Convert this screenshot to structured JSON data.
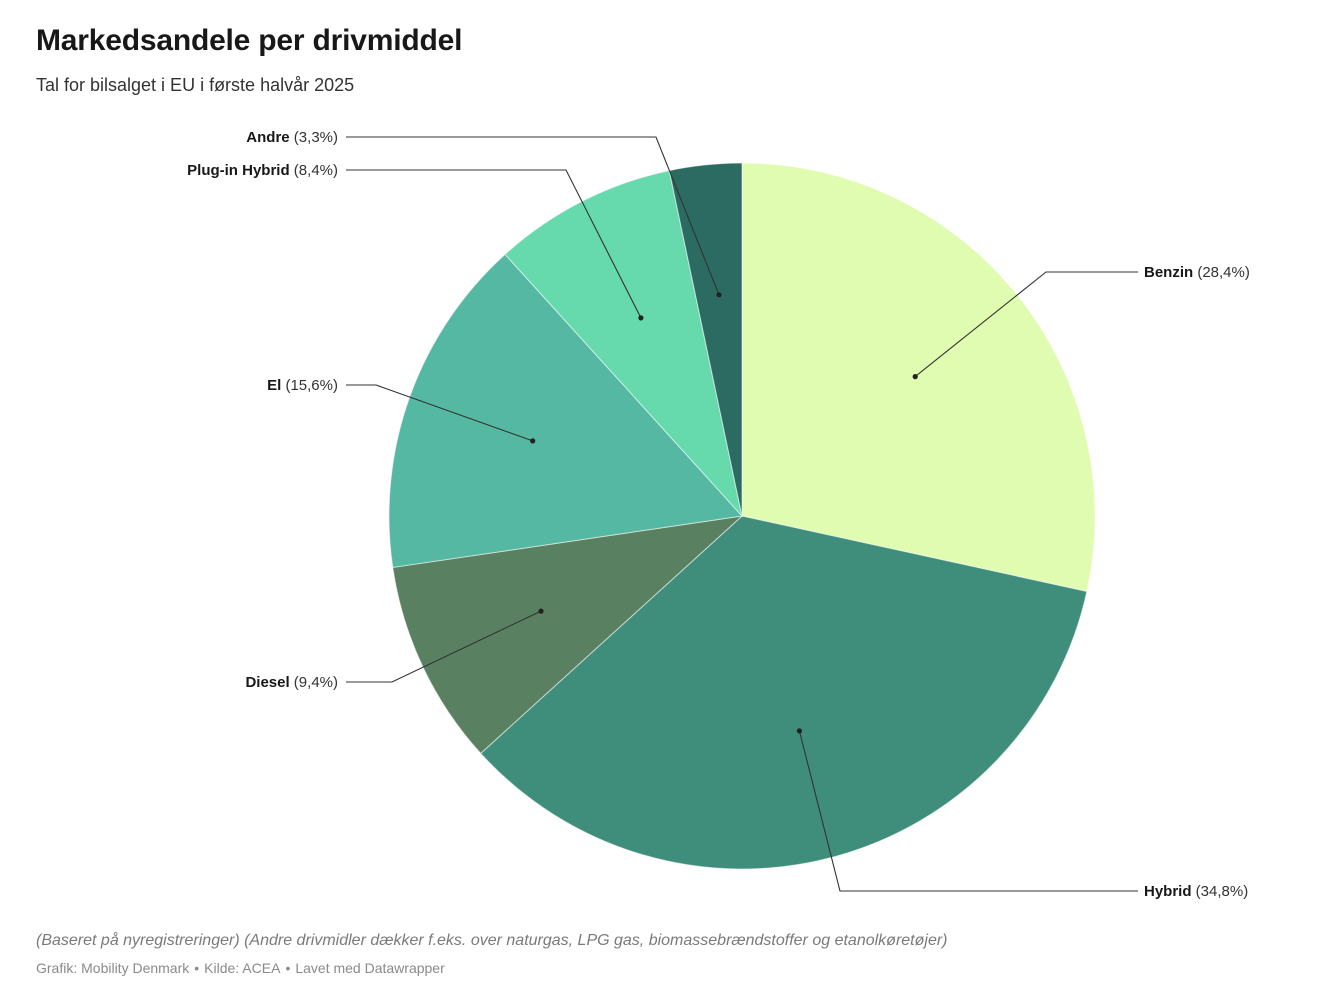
{
  "title": "Markedsandele per drivmiddel",
  "subtitle": "Tal for bilsalget i EU i første halvår 2025",
  "note": "(Baseret på nyregistreringer) (Andre drivmidler dækker f.eks. over naturgas, LPG gas, biomassebrændstoffer og etanolkøretøjer)",
  "source": {
    "credit": "Grafik: Mobility Denmark",
    "origin": "Kilde: ACEA",
    "tool": "Lavet med Datawrapper"
  },
  "chart_data": {
    "type": "pie",
    "title": "Markedsandele per drivmiddel",
    "subtitle": "Tal for bilsalget i EU i første halvår 2025",
    "unit": "%",
    "slices": [
      {
        "label": "Benzin",
        "value": 28.4,
        "display": "(28,4%)",
        "color": "#e0fcb0"
      },
      {
        "label": "Hybrid",
        "value": 34.8,
        "display": "(34,8%)",
        "color": "#3f8e7b"
      },
      {
        "label": "Diesel",
        "value": 9.4,
        "display": "(9,4%)",
        "color": "#5a8062"
      },
      {
        "label": "El",
        "value": 15.6,
        "display": "(15,6%)",
        "color": "#55b8a2"
      },
      {
        "label": "Plug-in Hybrid",
        "value": 8.4,
        "display": "(8,4%)",
        "color": "#66daac"
      },
      {
        "label": "Andre",
        "value": 3.3,
        "display": "(3,3%)",
        "color": "#2c6b61"
      }
    ]
  }
}
